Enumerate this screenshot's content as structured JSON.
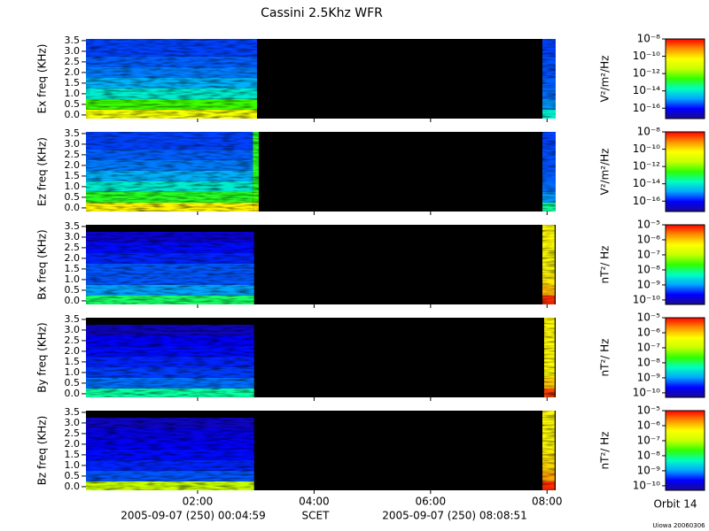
{
  "chart_data": {
    "type": "spectrogram",
    "title": "Cassini 2.5Khz WFR",
    "xlim": [
      0.083,
      8.148
    ],
    "xticks": [
      {
        "value": 2,
        "label": "02:00"
      },
      {
        "value": 4,
        "label": "04:00"
      },
      {
        "value": 6,
        "label": "06:00"
      },
      {
        "value": 8,
        "label": "08:00"
      }
    ],
    "ylim": [
      -0.17,
      3.58
    ],
    "yticks": [
      {
        "value": 0,
        "label": "0.0"
      },
      0.5,
      {
        "value": 1,
        "label": "1.0"
      },
      1.5,
      {
        "value": 2,
        "label": "2.0"
      },
      2.5,
      {
        "value": 3,
        "label": "3.0"
      },
      3.5
    ],
    "freq_bins": [
      -0.17,
      0.25,
      0.75,
      1.25,
      1.75,
      2.25,
      2.75,
      3.25,
      3.58
    ],
    "colormap": [
      "#1a0a90",
      "#0000ff",
      "#00a8ff",
      "#00ffc0",
      "#30ff00",
      "#c8ff00",
      "#ffff00",
      "#ff9000",
      "#ff0000"
    ],
    "start_label": "2005-09-07 (250) 00:04:59",
    "time_label": "SCET",
    "end_label": "2005-09-07 (250) 08:08:51",
    "orbit": "Orbit 14",
    "credit": "Uiowa 20060306",
    "panels": [
      {
        "ylabel": "Ex freq (KHz)",
        "zunit": "V²/m²/Hz",
        "zlim": [
          -17.2,
          -8
        ],
        "zticks": [
          {
            "value": -8,
            "label": "10⁻⁸"
          },
          {
            "value": -10,
            "label": "10⁻¹⁰"
          },
          {
            "value": -12,
            "label": "10⁻¹²"
          },
          {
            "value": -14,
            "label": "10⁻¹⁴"
          },
          {
            "value": -16,
            "label": "10⁻¹⁶"
          }
        ],
        "segments": [
          {
            "t": [
              0.083,
              3.02
            ],
            "values": [
              -10.5,
              -12.5,
              -14,
              -14.8,
              -15.2,
              -15.4,
              -15.6,
              -15.6
            ]
          },
          {
            "t": [
              7.92,
              8.148
            ],
            "values": [
              -14,
              -15,
              -15.3,
              -15.4,
              -15.5,
              -15.5,
              -15.6,
              -15.6
            ]
          }
        ]
      },
      {
        "ylabel": "Ez freq (KHz)",
        "zunit": "V²/m²/Hz",
        "zlim": [
          -17.2,
          -8
        ],
        "zticks": [
          {
            "value": -8,
            "label": "10⁻⁸"
          },
          {
            "value": -10,
            "label": "10⁻¹⁰"
          },
          {
            "value": -12,
            "label": "10⁻¹²"
          },
          {
            "value": -14,
            "label": "10⁻¹⁴"
          },
          {
            "value": -16,
            "label": "10⁻¹⁶"
          }
        ],
        "segments": [
          {
            "t": [
              0.083,
              2.95
            ],
            "values": [
              -10.2,
              -12.8,
              -14,
              -14.8,
              -15.2,
              -15.4,
              -15.6,
              -15.6
            ]
          },
          {
            "t": [
              2.95,
              3.05
            ],
            "values": [
              -10,
              -12.5,
              -12.8,
              -12.8,
              -12.8,
              -12.8,
              -12.8,
              -12.8
            ]
          },
          {
            "t": [
              7.92,
              8.148
            ],
            "values": [
              -13.5,
              -15,
              -15.3,
              -15.4,
              -15.5,
              -15.5,
              -15.6,
              -15.6
            ]
          }
        ]
      },
      {
        "ylabel": "Bx freq (KHz)",
        "zunit": "nT²/ Hz",
        "zlim": [
          -10.3,
          -5
        ],
        "zticks": [
          {
            "value": -5,
            "label": "10⁻⁵"
          },
          {
            "value": -6,
            "label": "10⁻⁶"
          },
          {
            "value": -7,
            "label": "10⁻⁷"
          },
          {
            "value": -8,
            "label": "10⁻⁸"
          },
          {
            "value": -9,
            "label": "10⁻⁹"
          },
          {
            "value": -10,
            "label": "10⁻¹⁰"
          }
        ],
        "segments": [
          {
            "t": [
              0.083,
              2.97
            ],
            "values": [
              -8,
              -9,
              -9.3,
              -9.3,
              -9.5,
              -9.6,
              -9.9,
              null
            ]
          },
          {
            "t": [
              7.92,
              8.13
            ],
            "values": [
              -5.2,
              -5.9,
              -6.2,
              -6.3,
              -6.3,
              -6.3,
              -6.3,
              -6.3
            ]
          }
        ]
      },
      {
        "ylabel": "By freq (KHz)",
        "zunit": "nT²/ Hz",
        "zlim": [
          -10.3,
          -5
        ],
        "zticks": [
          {
            "value": -5,
            "label": "10⁻⁵"
          },
          {
            "value": -6,
            "label": "10⁻⁶"
          },
          {
            "value": -7,
            "label": "10⁻⁷"
          },
          {
            "value": -8,
            "label": "10⁻⁸"
          },
          {
            "value": -9,
            "label": "10⁻⁹"
          },
          {
            "value": -10,
            "label": "10⁻¹⁰"
          }
        ],
        "segments": [
          {
            "t": [
              0.083,
              2.97
            ],
            "values": [
              -8.2,
              -9.2,
              -9.4,
              -9.5,
              -9.6,
              -9.7,
              -10,
              null
            ]
          },
          {
            "t": [
              7.95,
              8.13
            ],
            "values": [
              -5.3,
              -6,
              -6.3,
              -6.3,
              -6.3,
              -6.3,
              -6.3,
              -6.3
            ]
          }
        ]
      },
      {
        "ylabel": "Bz freq (KHz)",
        "zunit": "nT²/ Hz",
        "zlim": [
          -10.3,
          -5
        ],
        "zticks": [
          {
            "value": -5,
            "label": "10⁻⁵"
          },
          {
            "value": -6,
            "label": "10⁻⁶"
          },
          {
            "value": -7,
            "label": "10⁻⁷"
          },
          {
            "value": -8,
            "label": "10⁻⁸"
          },
          {
            "value": -9,
            "label": "10⁻⁹"
          },
          {
            "value": -10,
            "label": "10⁻¹⁰"
          }
        ],
        "segments": [
          {
            "t": [
              0.083,
              2.97
            ],
            "values": [
              -7,
              -9.3,
              -9.5,
              -9.6,
              -9.7,
              -9.8,
              -10,
              null
            ]
          },
          {
            "t": [
              7.92,
              8.13
            ],
            "values": [
              -5.2,
              -5.8,
              -6.1,
              -6.2,
              -6.3,
              -6.3,
              -6.3,
              -6.3
            ]
          }
        ]
      }
    ]
  }
}
